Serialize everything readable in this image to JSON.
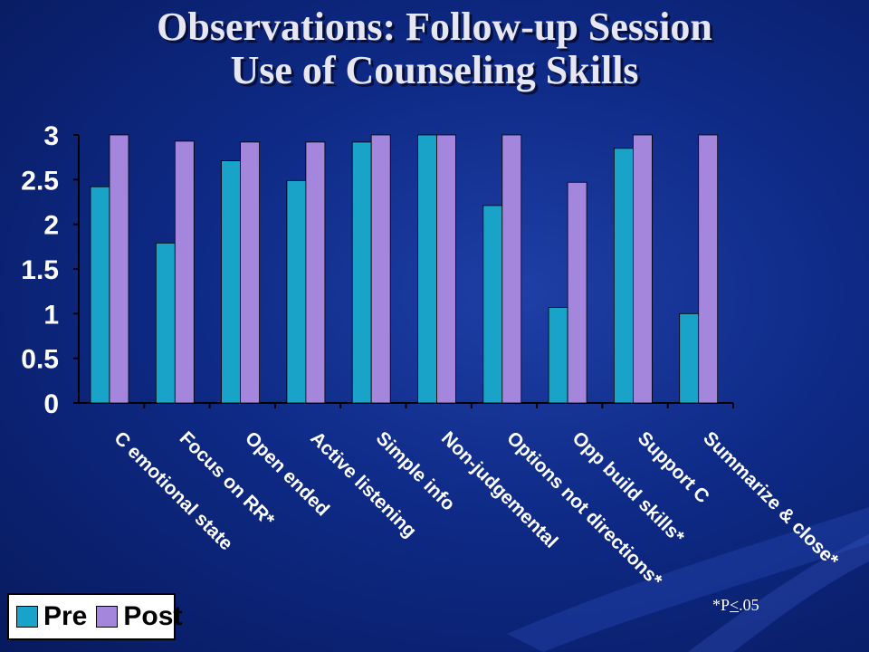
{
  "slide": {
    "title_line1": "Observations: Follow-up Session",
    "title_line2": "Use of Counseling Skills",
    "footnote_prefix": "*P",
    "footnote_symbol": "<",
    "footnote_value": ".05"
  },
  "colors": {
    "pre": "#1aa3c8",
    "post": "#a586dd",
    "axis_text": "#ffffff",
    "axis_line": "#000000"
  },
  "chart_data": {
    "type": "bar",
    "categories": [
      "C emotional state",
      "Focus on RR*",
      "Open ended",
      "Active listening",
      "Simple info",
      "Non-judgemental",
      "Options not directions*",
      "Opp build skills*",
      "Support C",
      "Summarize & close*"
    ],
    "series": [
      {
        "name": "Pre",
        "values": [
          2.42,
          1.79,
          2.71,
          2.49,
          2.92,
          3.0,
          2.21,
          1.07,
          2.85,
          1.0
        ]
      },
      {
        "name": "Post",
        "values": [
          3.0,
          2.93,
          2.92,
          2.92,
          3.0,
          3.0,
          3.0,
          2.47,
          3.0,
          3.0
        ]
      }
    ],
    "ylim": [
      0,
      3
    ],
    "yticks": [
      "0",
      "0.5",
      "1",
      "1.5",
      "2",
      "2.5",
      "3"
    ],
    "legend_position": "bottom-left",
    "grid": false
  }
}
